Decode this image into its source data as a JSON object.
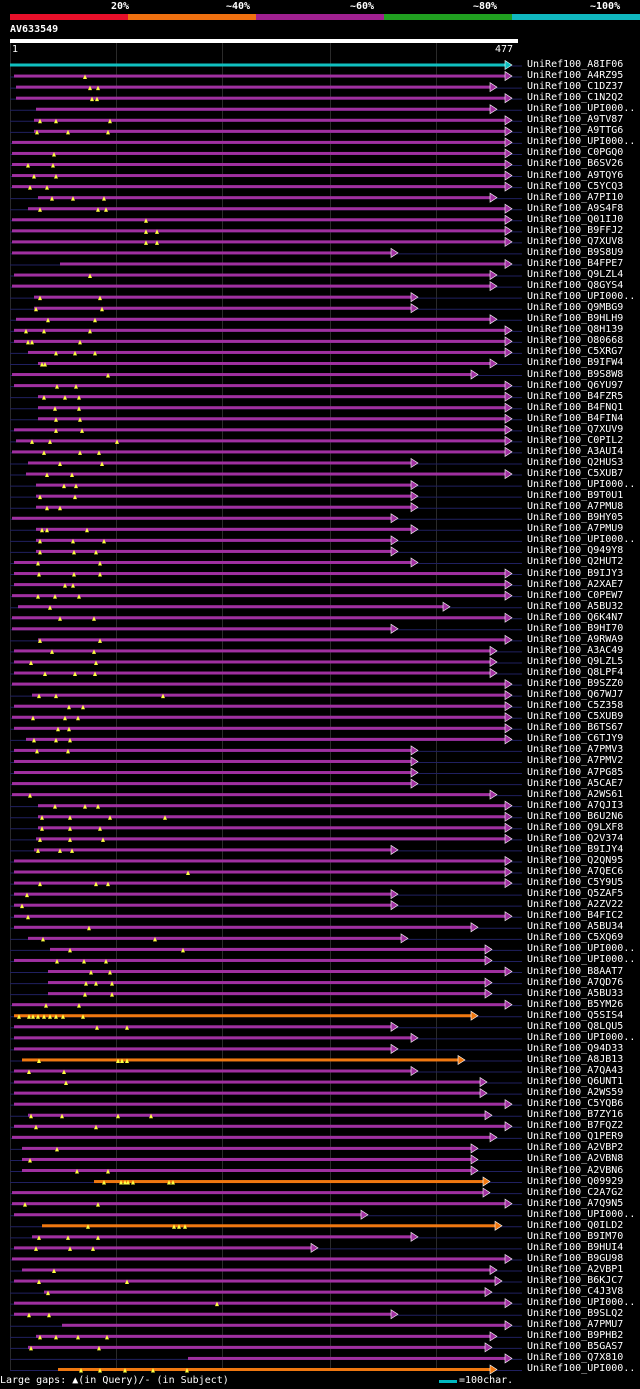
{
  "legend": {
    "labels": [
      "20%",
      "~40%",
      "~60%",
      "~80%",
      "~100%"
    ],
    "colors": [
      "#e8102a",
      "#f07010",
      "#a02090",
      "#20a020",
      "#10b8c0"
    ]
  },
  "query": {
    "title": "AV633549",
    "start": "1",
    "end": "477"
  },
  "colors": {
    "magenta": "#a030a0",
    "orange": "#f07810",
    "cyan": "#10c0c0",
    "dim": "#202060",
    "marker": "#ffff40"
  },
  "hits": [
    {
      "id": "UniRef100_A8IF06",
      "c": "cyan",
      "s": 10,
      "e": 512,
      "m": []
    },
    {
      "id": "UniRef100_A4RZ95",
      "c": "magenta",
      "s": 14,
      "e": 512,
      "m": [
        85
      ]
    },
    {
      "id": "UniRef100_C1DZ37",
      "c": "magenta",
      "s": 16,
      "e": 497,
      "m": [
        90,
        98
      ]
    },
    {
      "id": "UniRef100_C1N2Q2",
      "c": "magenta",
      "s": 16,
      "e": 512,
      "m": [
        92,
        97
      ]
    },
    {
      "id": "UniRef100_UPI000..",
      "c": "magenta",
      "s": 36,
      "e": 497,
      "m": []
    },
    {
      "id": "UniRef100_A9TV87",
      "c": "magenta",
      "s": 34,
      "e": 512,
      "m": [
        40,
        56,
        110
      ]
    },
    {
      "id": "UniRef100_A9TTG6",
      "c": "magenta",
      "s": 34,
      "e": 512,
      "m": [
        37,
        68,
        108
      ]
    },
    {
      "id": "UniRef100_UPI000..",
      "c": "magenta",
      "s": 12,
      "e": 512,
      "m": []
    },
    {
      "id": "UniRef100_C0PGQ0",
      "c": "magenta",
      "s": 12,
      "e": 512,
      "m": [
        54
      ]
    },
    {
      "id": "UniRef100_B6SV26",
      "c": "magenta",
      "s": 12,
      "e": 512,
      "m": [
        28,
        53
      ]
    },
    {
      "id": "UniRef100_A9TQY6",
      "c": "magenta",
      "s": 12,
      "e": 512,
      "m": [
        34,
        56
      ]
    },
    {
      "id": "UniRef100_C5YCQ3",
      "c": "magenta",
      "s": 12,
      "e": 512,
      "m": [
        30,
        47
      ]
    },
    {
      "id": "UniRef100_A7PI10",
      "c": "magenta",
      "s": 38,
      "e": 497,
      "m": [
        52,
        73,
        104
      ]
    },
    {
      "id": "UniRef100_A9S4F8",
      "c": "magenta",
      "s": 28,
      "e": 512,
      "m": [
        40,
        98,
        106
      ]
    },
    {
      "id": "UniRef100_Q01IJ0",
      "c": "magenta",
      "s": 12,
      "e": 512,
      "m": [
        146
      ]
    },
    {
      "id": "UniRef100_B9FFJ2",
      "c": "magenta",
      "s": 12,
      "e": 512,
      "m": [
        146,
        157
      ]
    },
    {
      "id": "UniRef100_Q7XUV8",
      "c": "magenta",
      "s": 12,
      "e": 512,
      "m": [
        146,
        157
      ]
    },
    {
      "id": "UniRef100_B9S8U9",
      "c": "magenta",
      "s": 12,
      "e": 398,
      "m": []
    },
    {
      "id": "UniRef100_B4FPE7",
      "c": "magenta",
      "s": 60,
      "e": 512,
      "m": []
    },
    {
      "id": "UniRef100_Q9LZL4",
      "c": "magenta",
      "s": 14,
      "e": 497,
      "m": [
        90
      ]
    },
    {
      "id": "UniRef100_Q8GYS4",
      "c": "magenta",
      "s": 12,
      "e": 497,
      "m": []
    },
    {
      "id": "UniRef100_UPI000..",
      "c": "magenta",
      "s": 34,
      "e": 418,
      "m": [
        40,
        100
      ]
    },
    {
      "id": "UniRef100_Q9MBG9",
      "c": "magenta",
      "s": 34,
      "e": 418,
      "m": [
        36,
        102
      ]
    },
    {
      "id": "UniRef100_B9HLH9",
      "c": "magenta",
      "s": 16,
      "e": 497,
      "m": [
        48,
        95
      ]
    },
    {
      "id": "UniRef100_Q8H139",
      "c": "magenta",
      "s": 14,
      "e": 512,
      "m": [
        26,
        44,
        90
      ]
    },
    {
      "id": "UniRef100_O80668",
      "c": "magenta",
      "s": 14,
      "e": 512,
      "m": [
        28,
        32,
        80
      ]
    },
    {
      "id": "UniRef100_C5XRG7",
      "c": "magenta",
      "s": 28,
      "e": 512,
      "m": [
        56,
        75,
        95
      ]
    },
    {
      "id": "UniRef100_B9IFW4",
      "c": "magenta",
      "s": 38,
      "e": 497,
      "m": [
        42,
        45
      ]
    },
    {
      "id": "UniRef100_B9S8W8",
      "c": "magenta",
      "s": 12,
      "e": 478,
      "m": [
        108
      ]
    },
    {
      "id": "UniRef100_Q6YU97",
      "c": "magenta",
      "s": 14,
      "e": 512,
      "m": [
        57,
        76
      ]
    },
    {
      "id": "UniRef100_B4FZR5",
      "c": "magenta",
      "s": 38,
      "e": 512,
      "m": [
        44,
        65,
        79
      ]
    },
    {
      "id": "UniRef100_B4FNQ1",
      "c": "magenta",
      "s": 38,
      "e": 512,
      "m": [
        55,
        79
      ]
    },
    {
      "id": "UniRef100_B4FIN4",
      "c": "magenta",
      "s": 38,
      "e": 512,
      "m": [
        56,
        80
      ]
    },
    {
      "id": "UniRef100_Q7XUV9",
      "c": "magenta",
      "s": 14,
      "e": 512,
      "m": [
        56,
        82
      ]
    },
    {
      "id": "UniRef100_C0PIL2",
      "c": "magenta",
      "s": 16,
      "e": 512,
      "m": [
        32,
        50,
        117
      ]
    },
    {
      "id": "UniRef100_A3AUI4",
      "c": "magenta",
      "s": 12,
      "e": 512,
      "m": [
        44,
        80,
        99
      ]
    },
    {
      "id": "UniRef100_Q2HUS3",
      "c": "magenta",
      "s": 28,
      "e": 418,
      "m": [
        60,
        102
      ]
    },
    {
      "id": "UniRef100_C5XUB7",
      "c": "magenta",
      "s": 26,
      "e": 512,
      "m": [
        47,
        72
      ]
    },
    {
      "id": "UniRef100_UPI000..",
      "c": "magenta",
      "s": 36,
      "e": 418,
      "m": [
        64,
        76
      ]
    },
    {
      "id": "UniRef100_B9T0U1",
      "c": "magenta",
      "s": 36,
      "e": 418,
      "m": [
        40,
        75
      ]
    },
    {
      "id": "UniRef100_A7PMU8",
      "c": "magenta",
      "s": 36,
      "e": 418,
      "m": [
        47,
        60
      ]
    },
    {
      "id": "UniRef100_B9HY05",
      "c": "magenta",
      "s": 12,
      "e": 398,
      "m": []
    },
    {
      "id": "UniRef100_A7PMU9",
      "c": "magenta",
      "s": 36,
      "e": 418,
      "m": [
        42,
        47,
        87
      ]
    },
    {
      "id": "UniRef100_UPI000..",
      "c": "magenta",
      "s": 36,
      "e": 398,
      "m": [
        40,
        73,
        104
      ]
    },
    {
      "id": "UniRef100_Q949Y8",
      "c": "magenta",
      "s": 36,
      "e": 398,
      "m": [
        40,
        74,
        96
      ]
    },
    {
      "id": "UniRef100_Q2HUT2",
      "c": "magenta",
      "s": 14,
      "e": 418,
      "m": [
        38,
        100
      ]
    },
    {
      "id": "UniRef100_B9IJY3",
      "c": "magenta",
      "s": 14,
      "e": 512,
      "m": [
        39,
        74,
        100
      ]
    },
    {
      "id": "UniRef100_A2XAE7",
      "c": "magenta",
      "s": 14,
      "e": 512,
      "m": [
        65,
        73
      ]
    },
    {
      "id": "UniRef100_C0PEW7",
      "c": "magenta",
      "s": 12,
      "e": 512,
      "m": [
        38,
        55,
        79
      ]
    },
    {
      "id": "UniRef100_A5BU32",
      "c": "magenta",
      "s": 18,
      "e": 450,
      "m": [
        50
      ]
    },
    {
      "id": "UniRef100_Q6K4N7",
      "c": "magenta",
      "s": 12,
      "e": 512,
      "m": [
        60,
        94
      ]
    },
    {
      "id": "UniRef100_B9HI70",
      "c": "magenta",
      "s": 12,
      "e": 398,
      "m": []
    },
    {
      "id": "UniRef100_A9RWA9",
      "c": "magenta",
      "s": 38,
      "e": 512,
      "m": [
        40,
        100
      ]
    },
    {
      "id": "UniRef100_A3AC49",
      "c": "magenta",
      "s": 14,
      "e": 497,
      "m": [
        52,
        94
      ]
    },
    {
      "id": "UniRef100_Q9LZL5",
      "c": "magenta",
      "s": 14,
      "e": 497,
      "m": [
        31,
        96
      ]
    },
    {
      "id": "UniRef100_Q8LPF4",
      "c": "magenta",
      "s": 14,
      "e": 497,
      "m": [
        45,
        75,
        95
      ]
    },
    {
      "id": "UniRef100_B9SZZ0",
      "c": "magenta",
      "s": 12,
      "e": 512,
      "m": []
    },
    {
      "id": "UniRef100_Q67WJ7",
      "c": "magenta",
      "s": 32,
      "e": 512,
      "m": [
        39,
        56,
        163
      ]
    },
    {
      "id": "UniRef100_C5Z358",
      "c": "magenta",
      "s": 14,
      "e": 512,
      "m": [
        69,
        83
      ]
    },
    {
      "id": "UniRef100_C5XUB9",
      "c": "magenta",
      "s": 12,
      "e": 512,
      "m": [
        33,
        65,
        78
      ]
    },
    {
      "id": "UniRef100_B6TS67",
      "c": "magenta",
      "s": 14,
      "e": 512,
      "m": [
        58,
        69
      ]
    },
    {
      "id": "UniRef100_C6TJY9",
      "c": "magenta",
      "s": 26,
      "e": 512,
      "m": [
        34,
        56,
        70
      ]
    },
    {
      "id": "UniRef100_A7PMV3",
      "c": "magenta",
      "s": 14,
      "e": 418,
      "m": [
        37,
        68
      ]
    },
    {
      "id": "UniRef100_A7PMV2",
      "c": "magenta",
      "s": 14,
      "e": 418,
      "m": []
    },
    {
      "id": "UniRef100_A7PG85",
      "c": "magenta",
      "s": 14,
      "e": 418,
      "m": []
    },
    {
      "id": "UniRef100_A5CAE7",
      "c": "magenta",
      "s": 12,
      "e": 418,
      "m": []
    },
    {
      "id": "UniRef100_A2WS61",
      "c": "magenta",
      "s": 12,
      "e": 497,
      "m": [
        30
      ]
    },
    {
      "id": "UniRef100_A7QJI3",
      "c": "magenta",
      "s": 38,
      "e": 512,
      "m": [
        55,
        85,
        98
      ]
    },
    {
      "id": "UniRef100_B6U2N6",
      "c": "magenta",
      "s": 38,
      "e": 512,
      "m": [
        42,
        70,
        110,
        165
      ]
    },
    {
      "id": "UniRef100_Q9LXF8",
      "c": "magenta",
      "s": 38,
      "e": 512,
      "m": [
        42,
        70,
        100
      ]
    },
    {
      "id": "UniRef100_Q2V374",
      "c": "magenta",
      "s": 36,
      "e": 512,
      "m": [
        40,
        70,
        103
      ]
    },
    {
      "id": "UniRef100_B9IJY4",
      "c": "magenta",
      "s": 34,
      "e": 398,
      "m": [
        38,
        60,
        72
      ]
    },
    {
      "id": "UniRef100_Q2QN95",
      "c": "magenta",
      "s": 14,
      "e": 512,
      "m": []
    },
    {
      "id": "UniRef100_A7QEC6",
      "c": "magenta",
      "s": 14,
      "e": 512,
      "m": [
        188
      ]
    },
    {
      "id": "UniRef100_C5Y9U5",
      "c": "magenta",
      "s": 14,
      "e": 512,
      "m": [
        40,
        96,
        108
      ]
    },
    {
      "id": "UniRef100_Q5ZAF5",
      "c": "magenta",
      "s": 14,
      "e": 398,
      "m": [
        27
      ]
    },
    {
      "id": "UniRef100_A2ZV22",
      "c": "magenta",
      "s": 14,
      "e": 398,
      "m": [
        22
      ]
    },
    {
      "id": "UniRef100_B4FIC2",
      "c": "magenta",
      "s": 14,
      "e": 512,
      "m": [
        28
      ]
    },
    {
      "id": "UniRef100_A5BU34",
      "c": "magenta",
      "s": 14,
      "e": 478,
      "m": [
        89
      ]
    },
    {
      "id": "UniRef100_C5XQ69",
      "c": "magenta",
      "s": 28,
      "e": 408,
      "m": [
        43,
        155
      ]
    },
    {
      "id": "UniRef100_UPI000..",
      "c": "magenta",
      "s": 50,
      "e": 492,
      "m": [
        70,
        183
      ]
    },
    {
      "id": "UniRef100_UPI000..",
      "c": "magenta",
      "s": 14,
      "e": 492,
      "m": [
        57,
        84,
        106
      ]
    },
    {
      "id": "UniRef100_B8AAT7",
      "c": "magenta",
      "s": 48,
      "e": 512,
      "m": [
        91,
        110
      ]
    },
    {
      "id": "UniRef100_A7QD76",
      "c": "magenta",
      "s": 48,
      "e": 492,
      "m": [
        86,
        96,
        112
      ]
    },
    {
      "id": "UniRef100_A5BU33",
      "c": "magenta",
      "s": 48,
      "e": 492,
      "m": [
        85,
        112
      ]
    },
    {
      "id": "UniRef100_B5YM26",
      "c": "magenta",
      "s": 12,
      "e": 512,
      "m": [
        46,
        79
      ]
    },
    {
      "id": "UniRef100_Q5SIS4",
      "c": "orange",
      "s": 14,
      "e": 478,
      "m": [
        19,
        29,
        33,
        38,
        44,
        50,
        56,
        63,
        83
      ]
    },
    {
      "id": "UniRef100_Q8LQU5",
      "c": "magenta",
      "s": 14,
      "e": 398,
      "m": [
        97,
        127
      ]
    },
    {
      "id": "UniRef100_UPI000..",
      "c": "magenta",
      "s": 14,
      "e": 418,
      "m": []
    },
    {
      "id": "UniRef100_Q94D33",
      "c": "magenta",
      "s": 14,
      "e": 398,
      "m": []
    },
    {
      "id": "UniRef100_A8JB13",
      "c": "orange",
      "s": 22,
      "e": 465,
      "m": [
        39,
        118,
        122,
        127
      ]
    },
    {
      "id": "UniRef100_A7QA43",
      "c": "magenta",
      "s": 14,
      "e": 418,
      "m": [
        29,
        64
      ]
    },
    {
      "id": "UniRef100_Q6UNT1",
      "c": "magenta",
      "s": 14,
      "e": 487,
      "m": [
        66
      ]
    },
    {
      "id": "UniRef100_A2WS59",
      "c": "magenta",
      "s": 14,
      "e": 487,
      "m": []
    },
    {
      "id": "UniRef100_C5YQB6",
      "c": "magenta",
      "s": 14,
      "e": 512,
      "m": []
    },
    {
      "id": "UniRef100_B7ZY16",
      "c": "magenta",
      "s": 28,
      "e": 492,
      "m": [
        31,
        62,
        118,
        151
      ]
    },
    {
      "id": "UniRef100_B7FQZ2",
      "c": "magenta",
      "s": 14,
      "e": 512,
      "m": [
        36,
        96
      ]
    },
    {
      "id": "UniRef100_Q1PER9",
      "c": "magenta",
      "s": 12,
      "e": 497,
      "m": []
    },
    {
      "id": "UniRef100_A2VBP2",
      "c": "magenta",
      "s": 22,
      "e": 478,
      "m": [
        57
      ]
    },
    {
      "id": "UniRef100_A2VBN8",
      "c": "magenta",
      "s": 22,
      "e": 478,
      "m": [
        30
      ]
    },
    {
      "id": "UniRef100_A2VBN6",
      "c": "magenta",
      "s": 22,
      "e": 478,
      "m": [
        77,
        108
      ]
    },
    {
      "id": "UniRef100_Q09929",
      "c": "orange",
      "s": 94,
      "e": 490,
      "m": [
        104,
        121,
        125,
        128,
        133,
        169,
        173
      ]
    },
    {
      "id": "UniRef100_C2A7G2",
      "c": "magenta",
      "s": 12,
      "e": 490,
      "m": []
    },
    {
      "id": "UniRef100_A7Q9N5",
      "c": "magenta",
      "s": 12,
      "e": 512,
      "m": [
        25,
        98
      ]
    },
    {
      "id": "UniRef100_UPI000..",
      "c": "magenta",
      "s": 14,
      "e": 368,
      "m": []
    },
    {
      "id": "UniRef100_Q0ILD2",
      "c": "orange",
      "s": 42,
      "e": 502,
      "m": [
        88,
        174,
        179,
        185
      ]
    },
    {
      "id": "UniRef100_B9IM70",
      "c": "magenta",
      "s": 32,
      "e": 418,
      "m": [
        39,
        68,
        98
      ]
    },
    {
      "id": "UniRef100_B9HUI4",
      "c": "magenta",
      "s": 14,
      "e": 318,
      "m": [
        36,
        70,
        93
      ]
    },
    {
      "id": "UniRef100_B9GU98",
      "c": "magenta",
      "s": 12,
      "e": 512,
      "m": []
    },
    {
      "id": "UniRef100_A2VBP1",
      "c": "magenta",
      "s": 22,
      "e": 497,
      "m": [
        54
      ]
    },
    {
      "id": "UniRef100_B6KJC7",
      "c": "magenta",
      "s": 14,
      "e": 502,
      "m": [
        39,
        127
      ]
    },
    {
      "id": "UniRef100_C4J3V8",
      "c": "magenta",
      "s": 44,
      "e": 492,
      "m": [
        48
      ]
    },
    {
      "id": "UniRef100_UPI000..",
      "c": "magenta",
      "s": 14,
      "e": 512,
      "m": [
        217
      ]
    },
    {
      "id": "UniRef100_B9SLQ2",
      "c": "magenta",
      "s": 14,
      "e": 398,
      "m": [
        29,
        49
      ]
    },
    {
      "id": "UniRef100_A7PMU7",
      "c": "magenta",
      "s": 62,
      "e": 512,
      "m": []
    },
    {
      "id": "UniRef100_B9PHB2",
      "c": "magenta",
      "s": 36,
      "e": 497,
      "m": [
        40,
        56,
        78,
        107
      ]
    },
    {
      "id": "UniRef100_B5GAS7",
      "c": "magenta",
      "s": 28,
      "e": 492,
      "m": [
        31,
        99
      ]
    },
    {
      "id": "UniRef100_Q7X810",
      "c": "magenta",
      "s": 188,
      "e": 512,
      "m": []
    },
    {
      "id": "UniRef100_UPI000..",
      "c": "orange",
      "s": 58,
      "e": 497,
      "m": [
        81,
        100,
        125,
        153,
        187
      ]
    }
  ],
  "footer": {
    "gap_text": "Large gaps: ▲(in Query)/- (in Subject)",
    "scale_text": "=100char."
  }
}
